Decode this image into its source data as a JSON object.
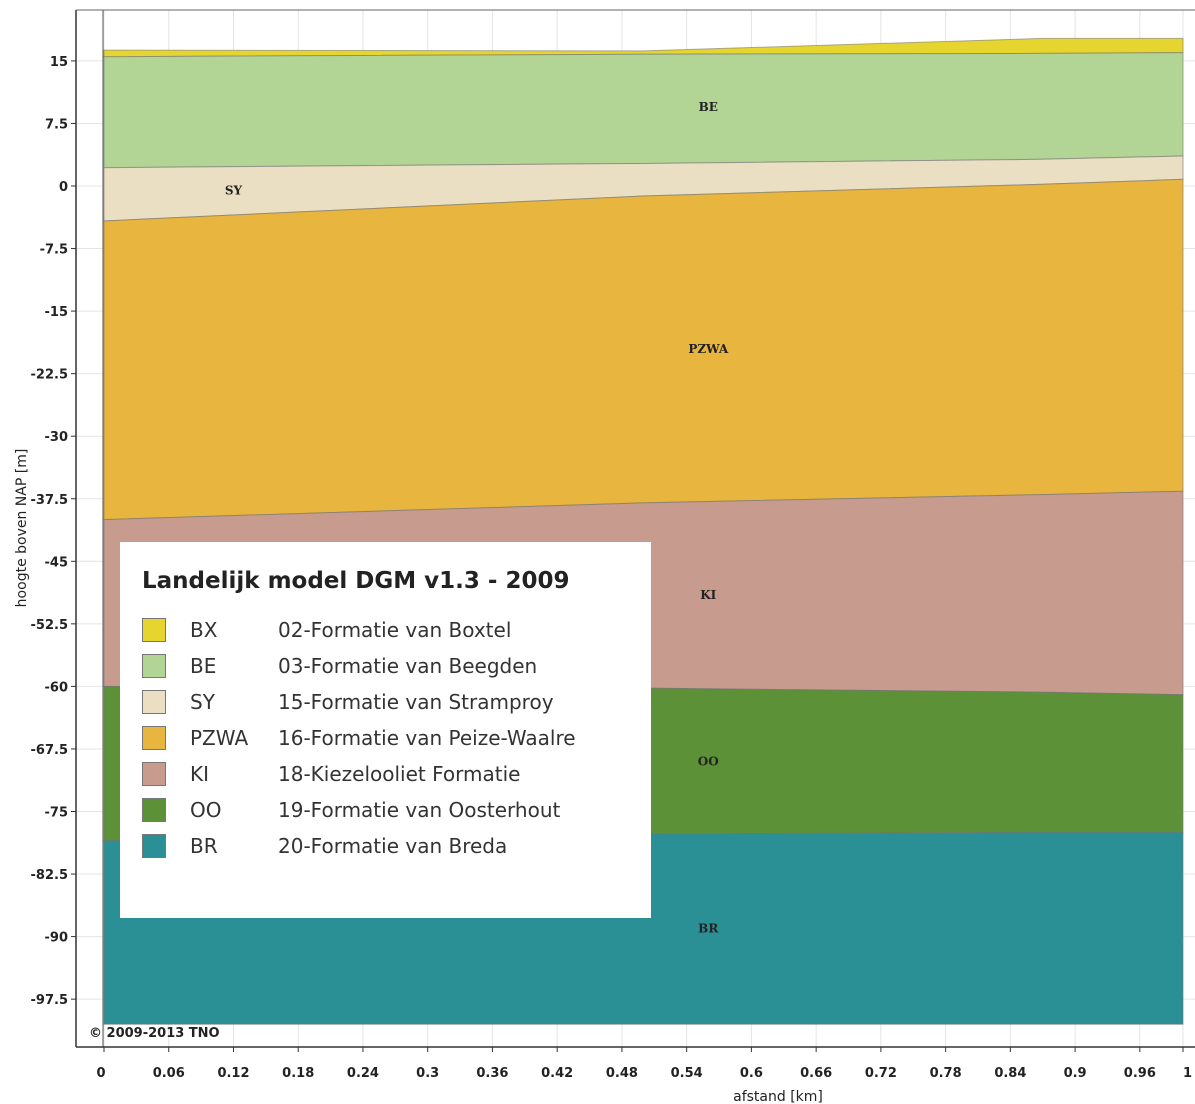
{
  "chart_data": {
    "type": "area",
    "ylabel": "hoogte boven NAP [m]",
    "xlabel": "afstand [km]",
    "xlim": [
      0,
      1
    ],
    "ylim": [
      -103,
      23
    ],
    "x_ticks": [
      "0",
      "0.06",
      "0.12",
      "0.18",
      "0.24",
      "0.3",
      "0.36",
      "0.42",
      "0.48",
      "0.54",
      "0.6",
      "0.66",
      "0.72",
      "0.78",
      "0.84",
      "0.9",
      "0.96",
      "1"
    ],
    "y_ticks": [
      "15",
      "7.5",
      "0",
      "-7.5",
      "-15",
      "-22.5",
      "-30",
      "-37.5",
      "-45",
      "-52.5",
      "-60",
      "-67.5",
      "-75",
      "-82.5",
      "-90",
      "-97.5"
    ],
    "grid": true,
    "legend_position": "bottom-left",
    "boundaries": {
      "x": [
        0,
        0.5,
        0.87,
        1
      ],
      "top": [
        16.3,
        16.2,
        17.7,
        17.7
      ],
      "bx_be": [
        15.5,
        15.8,
        15.9,
        16.0
      ],
      "be_sy": [
        2.2,
        2.7,
        3.2,
        3.6
      ],
      "sy_pzwa": [
        -4.2,
        -1.2,
        0.2,
        0.8
      ],
      "pzwa_ki": [
        -40.0,
        -38.0,
        -37.0,
        -36.6
      ],
      "ki_oo": [
        -60.0,
        -60.2,
        -60.7,
        -61.0
      ],
      "oo_br": [
        -78.5,
        -77.7,
        -77.5,
        -77.5
      ],
      "bottom": [
        -100.5,
        -100.5,
        -100.5,
        -100.5
      ]
    },
    "series": [
      {
        "name": "BX",
        "description": "02-Formatie van Boxtel",
        "color": "#e6d52e",
        "label_on_chart": "",
        "label_x": 0.5,
        "label_y": 16.0
      },
      {
        "name": "BE",
        "description": "03-Formatie van Beegden",
        "color": "#b2d596",
        "label_on_chart": "BE",
        "label_x": 0.56,
        "label_y": 9.0
      },
      {
        "name": "SY",
        "description": "15-Formatie van Stramproy",
        "color": "#eadfc2",
        "label_on_chart": "SY",
        "label_x": 0.12,
        "label_y": -1.0
      },
      {
        "name": "PZWA",
        "description": "16-Formatie van Peize-Waalre",
        "color": "#e8b53f",
        "label_on_chart": "PZWA",
        "label_x": 0.56,
        "label_y": -20.0
      },
      {
        "name": "KI",
        "description": "18-Kiezelooliet Formatie",
        "color": "#c89b8f",
        "label_on_chart": "KI",
        "label_x": 0.56,
        "label_y": -49.5
      },
      {
        "name": "OO",
        "description": "19-Formatie van Oosterhout",
        "color": "#5d9138",
        "label_on_chart": "OO",
        "label_x": 0.56,
        "label_y": -69.5
      },
      {
        "name": "BR",
        "description": "20-Formatie van Breda",
        "color": "#2b9096",
        "label_on_chart": "BR",
        "label_x": 0.56,
        "label_y": -89.5
      }
    ],
    "colors": {
      "bx": "#e6d52e",
      "be": "#b2d596",
      "sy": "#eadfc2",
      "pzwa": "#e8b53f",
      "ki": "#c89b8f",
      "oo": "#5d9138",
      "br": "#2b9096",
      "grid": "#e4e4e4",
      "axis": "#333333"
    }
  },
  "legend": {
    "title": "Landelijk model DGM v1.3 - 2009",
    "items": [
      {
        "code": "BX",
        "label": "02-Formatie van Boxtel",
        "color": "#e6d52e"
      },
      {
        "code": "BE",
        "label": "03-Formatie van Beegden",
        "color": "#b2d596"
      },
      {
        "code": "SY",
        "label": "15-Formatie van Stramproy",
        "color": "#eadfc2"
      },
      {
        "code": "PZWA",
        "label": "16-Formatie van Peize-Waalre",
        "color": "#e8b53f"
      },
      {
        "code": "KI",
        "label": "18-Kiezelooliet Formatie",
        "color": "#c89b8f"
      },
      {
        "code": "OO",
        "label": "19-Formatie van Oosterhout",
        "color": "#5d9138"
      },
      {
        "code": "BR",
        "label": "20-Formatie van Breda",
        "color": "#2b9096"
      }
    ]
  },
  "copyright": "© 2009-2013 TNO"
}
